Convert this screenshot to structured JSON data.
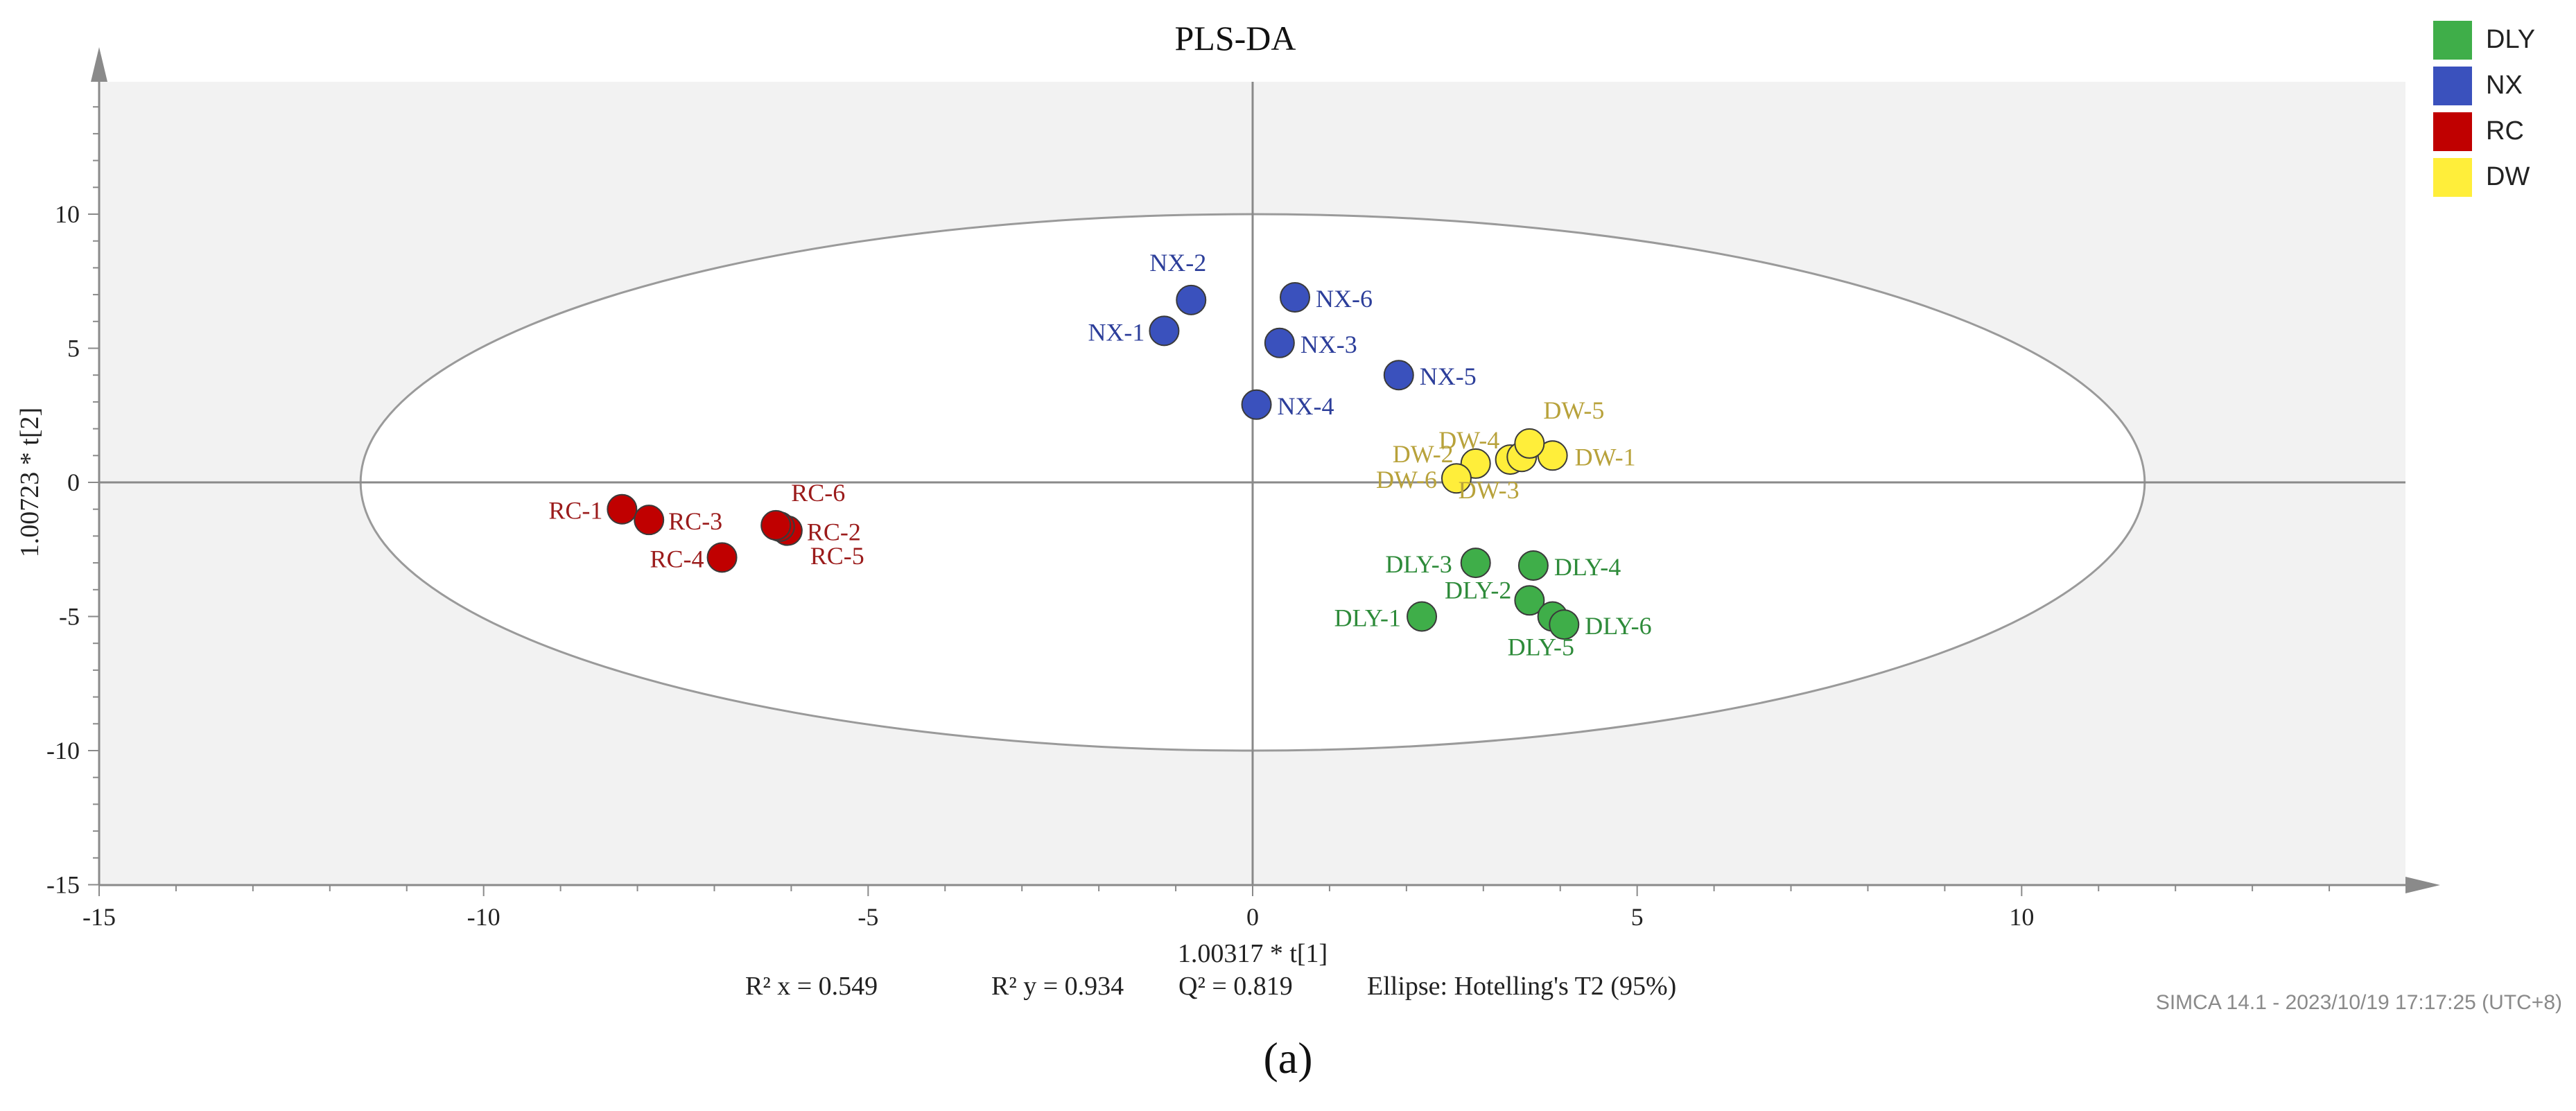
{
  "chart_data": {
    "type": "scatter",
    "title": "PLS-DA",
    "xlabel": "1.00317 * t[1]",
    "ylabel": "1.00723 * t[2]",
    "xlim": [
      -15,
      15
    ],
    "ylim": [
      -15,
      15
    ],
    "x_ticks": [
      -15,
      -10,
      -5,
      0,
      5,
      10
    ],
    "y_ticks": [
      -15,
      -10,
      -5,
      0,
      5,
      10
    ],
    "ellipse": {
      "cx": 0,
      "cy": 0,
      "rx": 11.6,
      "ry": 10
    },
    "legend_position": "top-right",
    "series": [
      {
        "name": "DLY",
        "color": "#3fae49",
        "label_color": "#2e8b3a",
        "points": [
          {
            "label": "DLY-1",
            "x": 2.2,
            "y": -5.0
          },
          {
            "label": "DLY-2",
            "x": 3.6,
            "y": -4.4
          },
          {
            "label": "DLY-3",
            "x": 2.9,
            "y": -3.0
          },
          {
            "label": "DLY-4",
            "x": 3.65,
            "y": -3.1
          },
          {
            "label": "DLY-5",
            "x": 3.9,
            "y": -5.0
          },
          {
            "label": "DLY-6",
            "x": 4.05,
            "y": -5.3
          }
        ]
      },
      {
        "name": "NX",
        "color": "#3a51bd",
        "label_color": "#2c3e9a",
        "points": [
          {
            "label": "NX-1",
            "x": -1.15,
            "y": 5.65
          },
          {
            "label": "NX-2",
            "x": -0.8,
            "y": 6.8
          },
          {
            "label": "NX-3",
            "x": 0.35,
            "y": 5.2
          },
          {
            "label": "NX-4",
            "x": 0.05,
            "y": 2.9
          },
          {
            "label": "NX-5",
            "x": 1.9,
            "y": 4.0
          },
          {
            "label": "NX-6",
            "x": 0.55,
            "y": 6.9
          }
        ]
      },
      {
        "name": "RC",
        "color": "#c00000",
        "label_color": "#9b1b1b",
        "points": [
          {
            "label": "RC-1",
            "x": -8.2,
            "y": -1.0
          },
          {
            "label": "RC-2",
            "x": -6.05,
            "y": -1.8
          },
          {
            "label": "RC-3",
            "x": -7.85,
            "y": -1.4
          },
          {
            "label": "RC-4",
            "x": -6.9,
            "y": -2.8
          },
          {
            "label": "RC-5",
            "x": -6.15,
            "y": -1.65
          },
          {
            "label": "RC-6",
            "x": -6.2,
            "y": -1.6
          }
        ]
      },
      {
        "name": "DW",
        "color": "#ffee3a",
        "label_color": "#b8a23b",
        "points": [
          {
            "label": "DW-1",
            "x": 3.9,
            "y": 1.0
          },
          {
            "label": "DW-2",
            "x": 2.9,
            "y": 0.7
          },
          {
            "label": "DW-3",
            "x": 3.35,
            "y": 0.85
          },
          {
            "label": "DW-4",
            "x": 3.5,
            "y": 0.95
          },
          {
            "label": "DW-5",
            "x": 3.6,
            "y": 1.45
          },
          {
            "label": "DW-6",
            "x": 2.65,
            "y": 0.15
          }
        ]
      }
    ]
  },
  "stats": {
    "r2x": "R² x = 0.549",
    "r2y": "R² y = 0.934",
    "q2": "Q² = 0.819",
    "ellipse_note": "Ellipse: Hotelling's T2 (95%)"
  },
  "footer": "SIMCA 14.1 - 2023/10/19 17:17:25 (UTC+8)",
  "panel_label": "(a)"
}
